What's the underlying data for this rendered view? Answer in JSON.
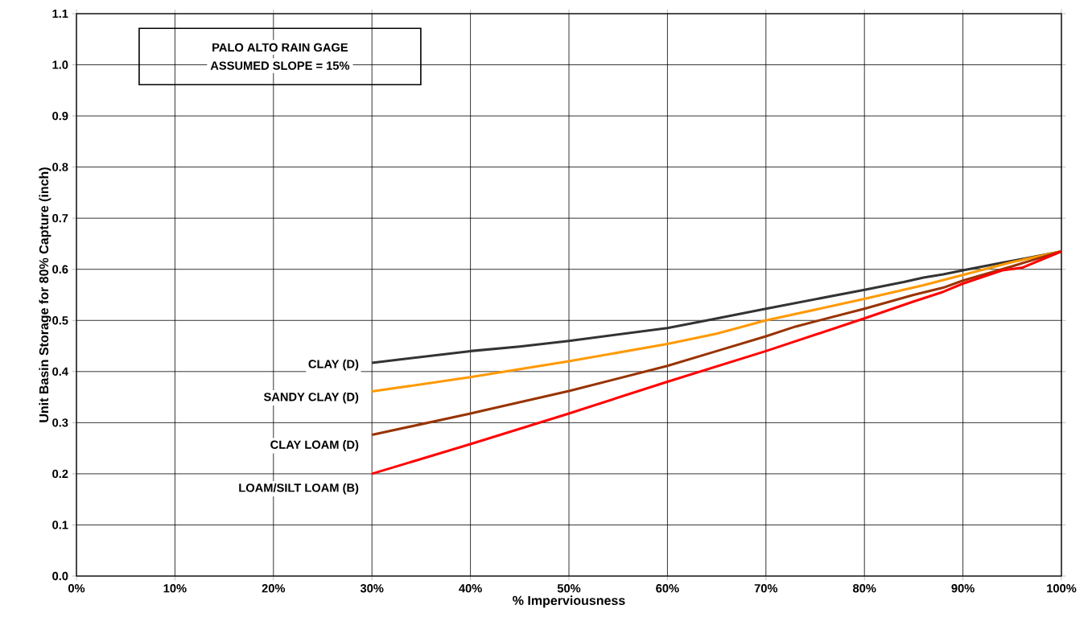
{
  "chart_data": {
    "type": "line",
    "xlabel": "% Imperviousness",
    "ylabel": "Unit Basin Storage for 80% Capture (inch)",
    "annotations": [
      "PALO ALTO RAIN GAGE",
      "ASSUMED SLOPE = 15%"
    ],
    "xlim": [
      0,
      100
    ],
    "ylim": [
      0,
      1.1
    ],
    "xticks": [
      {
        "value": 0,
        "label": "0%"
      },
      {
        "value": 10,
        "label": "10%"
      },
      {
        "value": 20,
        "label": "20%"
      },
      {
        "value": 30,
        "label": "30%"
      },
      {
        "value": 40,
        "label": "40%"
      },
      {
        "value": 50,
        "label": "50%"
      },
      {
        "value": 60,
        "label": "60%"
      },
      {
        "value": 70,
        "label": "70%"
      },
      {
        "value": 80,
        "label": "80%"
      },
      {
        "value": 90,
        "label": "90%"
      },
      {
        "value": 100,
        "label": "100%"
      }
    ],
    "yticks": [
      {
        "value": 0,
        "label": "0.0"
      },
      0.1,
      0.2,
      0.3,
      0.4,
      0.5,
      0.6,
      0.7,
      0.8,
      0.9,
      {
        "value": 1,
        "label": "1.0"
      },
      1.1
    ],
    "grid": true,
    "legend": false,
    "marker": "none",
    "line_style": "solid",
    "series": [
      {
        "name": "CLAY (D)",
        "color": "#333333",
        "x": [
          30,
          40,
          45,
          50,
          60,
          64,
          70,
          80,
          84,
          86,
          88,
          90,
          94,
          96,
          100
        ],
        "values": [
          0.417,
          0.44,
          0.449,
          0.46,
          0.485,
          0.5,
          0.523,
          0.56,
          0.575,
          0.584,
          0.59,
          0.598,
          0.613,
          0.62,
          0.635
        ]
      },
      {
        "name": "SANDY CLAY (D)",
        "color": "#ff9900",
        "x": [
          30,
          40,
          50,
          60,
          65,
          70,
          80,
          86,
          90,
          95,
          100
        ],
        "values": [
          0.361,
          0.389,
          0.42,
          0.454,
          0.474,
          0.5,
          0.542,
          0.569,
          0.589,
          0.614,
          0.635
        ]
      },
      {
        "name": "CLAY LOAM (D)",
        "color": "#993300",
        "x": [
          30,
          40,
          50,
          60,
          65,
          70,
          73,
          80,
          85,
          88,
          90,
          95,
          100
        ],
        "values": [
          0.276,
          0.318,
          0.362,
          0.411,
          0.44,
          0.469,
          0.488,
          0.523,
          0.55,
          0.564,
          0.578,
          0.606,
          0.635
        ]
      },
      {
        "name": "LOAM/SILT LOAM (B)",
        "color": "#ff0000",
        "x": [
          30,
          40,
          50,
          60,
          70,
          80,
          85,
          88,
          90,
          94,
          96,
          100
        ],
        "values": [
          0.2,
          0.258,
          0.318,
          0.38,
          0.44,
          0.504,
          0.537,
          0.556,
          0.572,
          0.598,
          0.603,
          0.635
        ]
      }
    ]
  }
}
